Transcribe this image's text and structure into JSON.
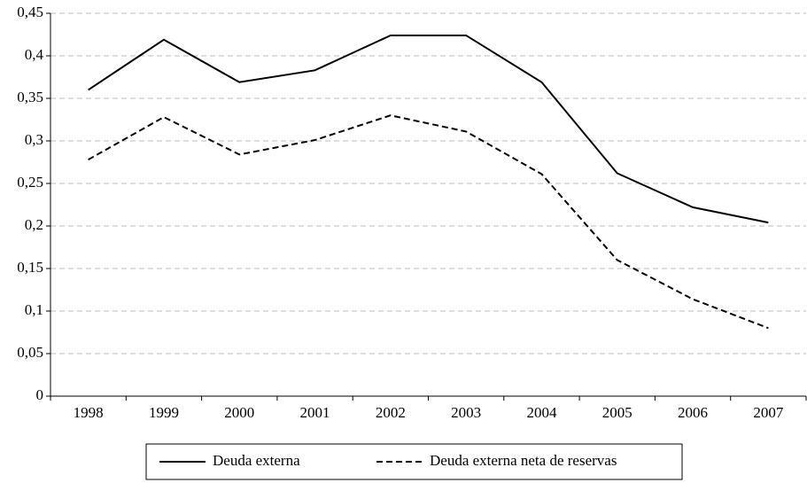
{
  "chart_data": {
    "type": "line",
    "categories": [
      "1998",
      "1999",
      "2000",
      "2001",
      "2002",
      "2003",
      "2004",
      "2005",
      "2006",
      "2007"
    ],
    "series": [
      {
        "name": "Deuda externa",
        "color": "#000000",
        "linestyle": "solid",
        "values": [
          0.36,
          0.419,
          0.369,
          0.383,
          0.424,
          0.424,
          0.369,
          0.262,
          0.222,
          0.204
        ]
      },
      {
        "name": "Deuda externa neta de reservas",
        "color": "#000000",
        "linestyle": "dashed",
        "values": [
          0.278,
          0.328,
          0.284,
          0.301,
          0.33,
          0.311,
          0.261,
          0.16,
          0.114,
          0.08
        ]
      }
    ],
    "ylim": [
      0,
      0.45
    ],
    "yticks": [
      0,
      {
        "value": 0.05,
        "label": "0,05"
      },
      {
        "value": 0.1,
        "label": "0,1"
      },
      {
        "value": 0.15,
        "label": "0,15"
      },
      {
        "value": 0.2,
        "label": "0,2"
      },
      {
        "value": 0.25,
        "label": "0,25"
      },
      {
        "value": 0.3,
        "label": "0,3"
      },
      {
        "value": 0.35,
        "label": "0,35"
      },
      {
        "value": 0.4,
        "label": "0,4"
      },
      {
        "value": 0.45,
        "label": "0,45"
      }
    ],
    "grid": true,
    "legend": "bottom"
  }
}
